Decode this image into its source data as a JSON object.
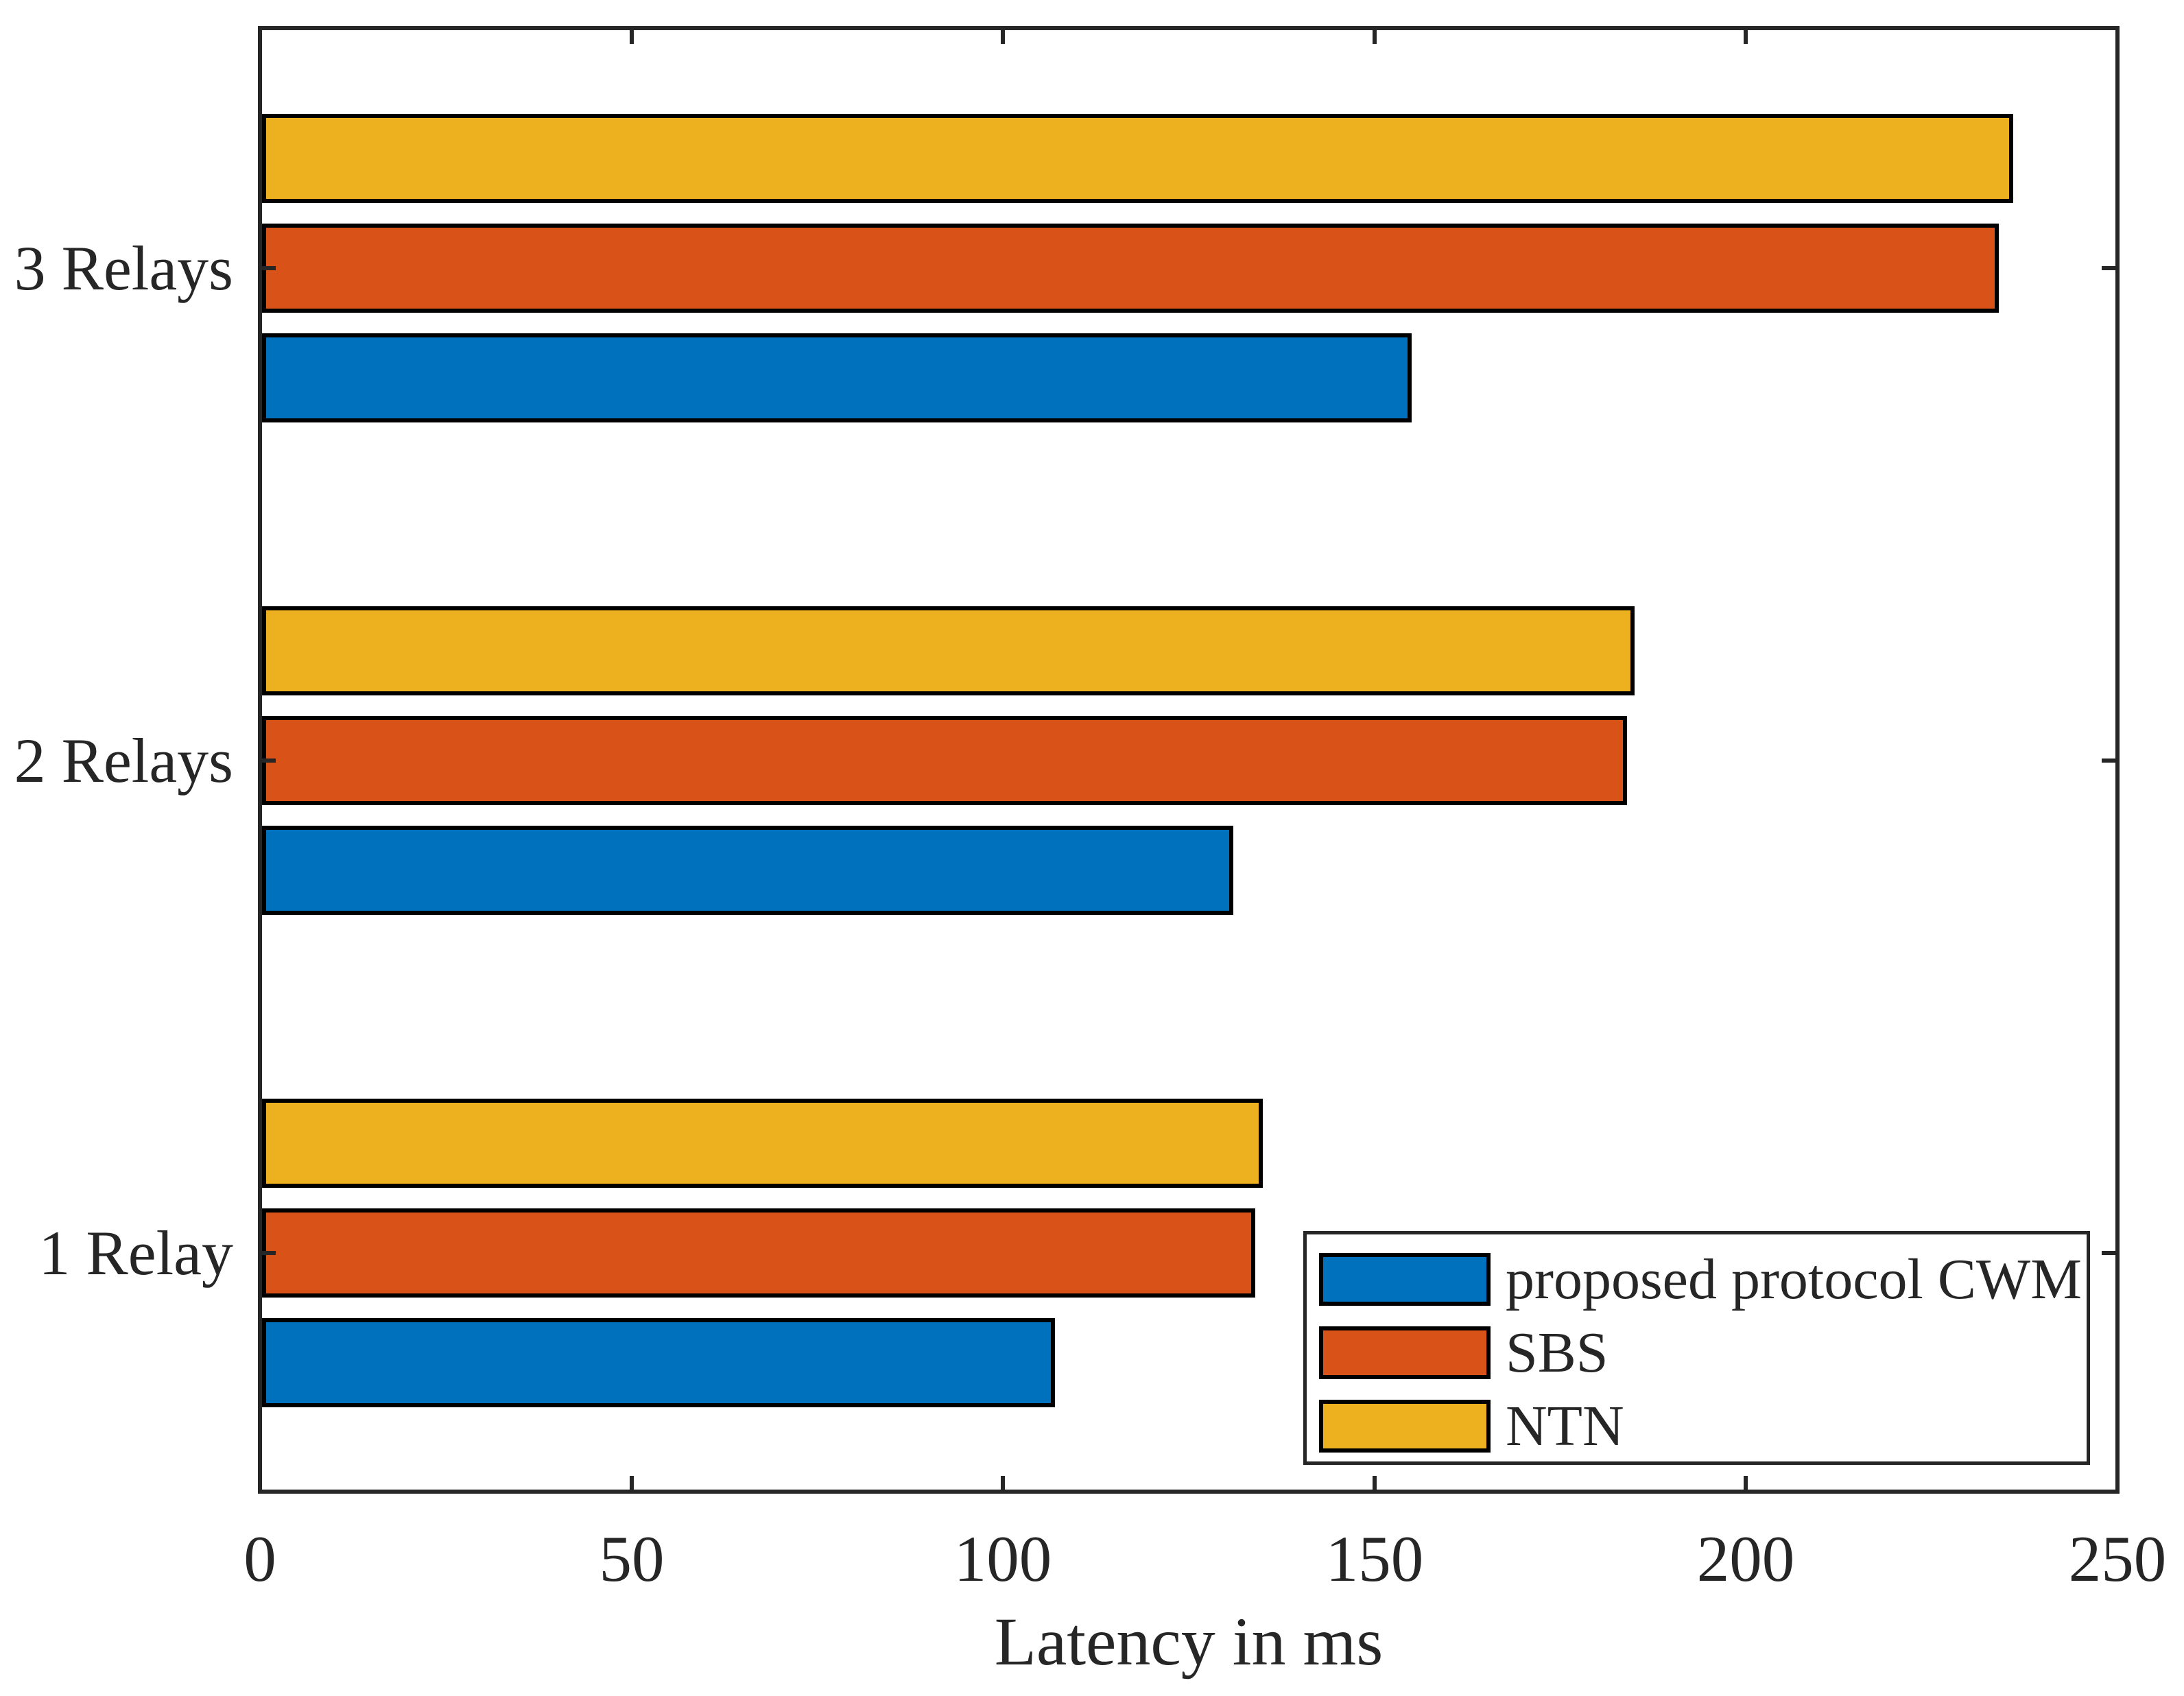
{
  "chart_data": {
    "type": "bar",
    "orientation": "horizontal",
    "title": "",
    "xlabel": "Latency in ms",
    "ylabel": "",
    "categories": [
      "1 Relay",
      "2 Relays",
      "3 Relays"
    ],
    "series": [
      {
        "name": "proposed protocol CWM",
        "color": "#0072BD",
        "values": [
          107,
          131,
          155
        ]
      },
      {
        "name": "SBS",
        "color": "#D95319",
        "values": [
          134,
          184,
          234
        ]
      },
      {
        "name": "NTN",
        "color": "#EDB120",
        "values": [
          135,
          185,
          236
        ]
      }
    ],
    "xlim": [
      0,
      250
    ],
    "xticks": [
      0,
      50,
      100,
      150,
      200,
      250
    ],
    "grid": false,
    "legend_position": "bottom-right",
    "colors": {
      "bar_edge": "#000000",
      "axis": "#262626",
      "text": "#262626",
      "background": "#ffffff"
    }
  }
}
